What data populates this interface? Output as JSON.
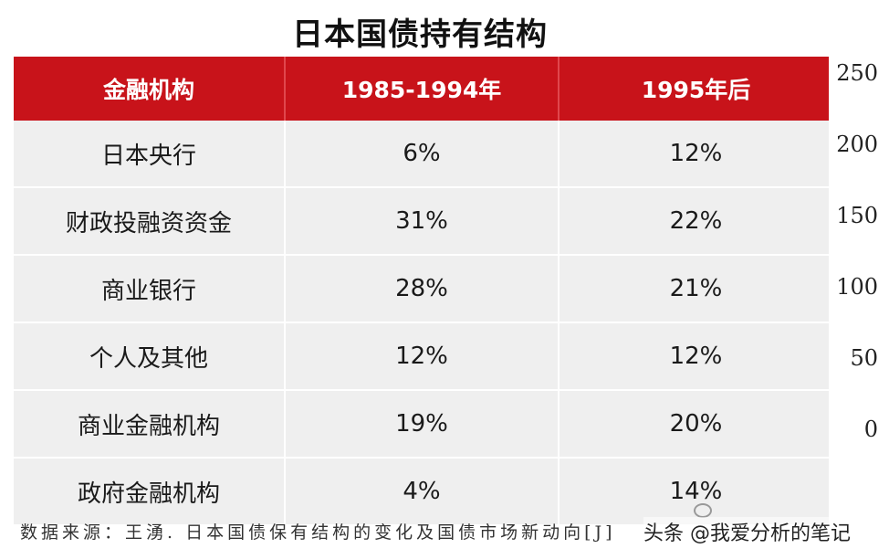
{
  "title": "日本国债持有结构",
  "table": {
    "headers": [
      "金融机构",
      "1985-1994年",
      "1995年后"
    ],
    "rows": [
      [
        "日本央行",
        "6%",
        "12%"
      ],
      [
        "财政投融资资金",
        "31%",
        "22%"
      ],
      [
        "商业银行",
        "28%",
        "21%"
      ],
      [
        "个人及其他",
        "12%",
        "12%"
      ],
      [
        "商业金融机构",
        "19%",
        "20%"
      ],
      [
        "政府金融机构",
        "4%",
        "14%"
      ]
    ]
  },
  "axis_ticks": [
    "250",
    "200",
    "150",
    "100",
    "50",
    "0"
  ],
  "source": "数据来源：王湧. 日本国债保有结构的变化及国债市场新动向[J]",
  "watermark": "头条 @我爱分析的笔记",
  "colors": {
    "header_bg": "#c8131a",
    "row_bg": "#efefef"
  }
}
